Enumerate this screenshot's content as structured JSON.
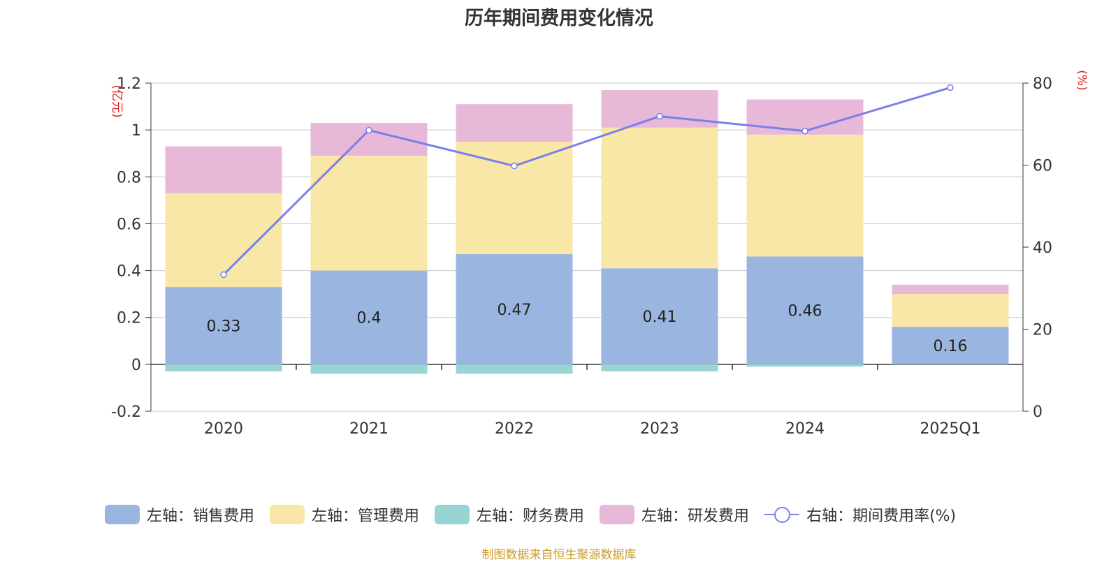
{
  "chart_data": {
    "type": "bar",
    "title": "历年期间费用变化情况",
    "categories": [
      "2020",
      "2021",
      "2022",
      "2023",
      "2024",
      "2025Q1"
    ],
    "left_axis": {
      "label": "(亿元)",
      "min": -0.2,
      "max": 1.2,
      "ticks": [
        "-0.2",
        "0",
        "0.2",
        "0.4",
        "0.6",
        "0.8",
        "1",
        "1.2"
      ]
    },
    "right_axis": {
      "label": "(%)",
      "min": 0,
      "max": 80,
      "ticks": [
        "0",
        "20",
        "40",
        "60",
        "80"
      ]
    },
    "series": [
      {
        "name": "左轴：销售费用",
        "axis": "left",
        "kind": "stacked-bar",
        "color": "#9ab6e0",
        "values": [
          0.33,
          0.4,
          0.47,
          0.41,
          0.46,
          0.16
        ],
        "labels": [
          "0.33",
          "0.4",
          "0.47",
          "0.41",
          "0.46",
          "0.16"
        ]
      },
      {
        "name": "左轴：管理费用",
        "axis": "left",
        "kind": "stacked-bar",
        "color": "#f8e7a7",
        "values": [
          0.4,
          0.49,
          0.48,
          0.6,
          0.52,
          0.14
        ]
      },
      {
        "name": "左轴：财务费用",
        "axis": "left",
        "kind": "stacked-bar",
        "color": "#98d4d4",
        "values": [
          -0.03,
          -0.04,
          -0.04,
          -0.03,
          -0.01,
          0.0
        ]
      },
      {
        "name": "左轴：研发费用",
        "axis": "left",
        "kind": "stacked-bar",
        "color": "#e8b8d8",
        "values": [
          0.2,
          0.14,
          0.16,
          0.16,
          0.15,
          0.04
        ]
      },
      {
        "name": "右轴：期间费用率(%)",
        "axis": "right",
        "kind": "line",
        "color": "#7b7fe8",
        "values": [
          33.3,
          68.5,
          59.8,
          71.9,
          68.3,
          78.9
        ]
      }
    ],
    "grid": true,
    "legend_position": "bottom"
  },
  "source_note": "制图数据来自恒生聚源数据库"
}
